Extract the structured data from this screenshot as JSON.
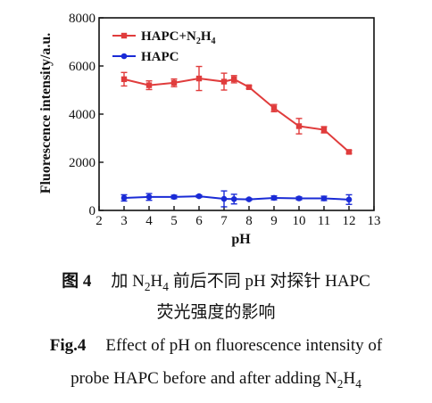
{
  "chart_data": {
    "type": "line",
    "xlabel": "pH",
    "ylabel": "Fluorescence intensity/a.u.",
    "xlim": [
      2,
      13
    ],
    "ylim": [
      0,
      8000
    ],
    "xticks": [
      "2",
      "3",
      "4",
      "5",
      "6",
      "7",
      "8",
      "9",
      "10",
      "11",
      "12",
      "13"
    ],
    "yticks": [
      "0",
      "2000",
      "4000",
      "6000",
      "8000"
    ],
    "legend_position": "top-left",
    "series": [
      {
        "name": "HAPC+N2H4",
        "name_parts": {
          "a": "HAPC+N",
          "s1": "2",
          "b": "H",
          "s2": "4"
        },
        "color": "#e03c3c",
        "marker": "square",
        "x": [
          3,
          4,
          5,
          6,
          7,
          7.4,
          8,
          9,
          10,
          11,
          12
        ],
        "y": [
          5450,
          5200,
          5300,
          5480,
          5350,
          5450,
          5120,
          4250,
          3500,
          3350,
          2430
        ],
        "err": [
          280,
          180,
          160,
          500,
          350,
          150,
          60,
          150,
          320,
          130,
          60
        ]
      },
      {
        "name": "HAPC",
        "name_parts": {
          "a": "HAPC",
          "s1": "",
          "b": "",
          "s2": ""
        },
        "color": "#1a2bd6",
        "marker": "circle",
        "x": [
          3,
          4,
          5,
          6,
          7,
          7.4,
          8,
          9,
          10,
          11,
          12
        ],
        "y": [
          520,
          560,
          560,
          590,
          480,
          470,
          460,
          520,
          500,
          500,
          450
        ],
        "err": [
          130,
          140,
          70,
          50,
          330,
          200,
          40,
          80,
          60,
          90,
          200
        ]
      }
    ]
  },
  "caption": {
    "zh_label": "图 4",
    "zh_line1_a": "加 N",
    "zh_line1_s1": "2",
    "zh_line1_b": "H",
    "zh_line1_s2": "4",
    "zh_line1_c": " 前后不同 pH 对探针 HAPC",
    "zh_line2": "荧光强度的影响",
    "en_label": "Fig.4",
    "en_line1": "Effect of pH on fluorescence intensity of",
    "en_line2_a": "probe HAPC before and after adding N",
    "en_line2_s1": "2",
    "en_line2_b": "H",
    "en_line2_s2": "4"
  }
}
